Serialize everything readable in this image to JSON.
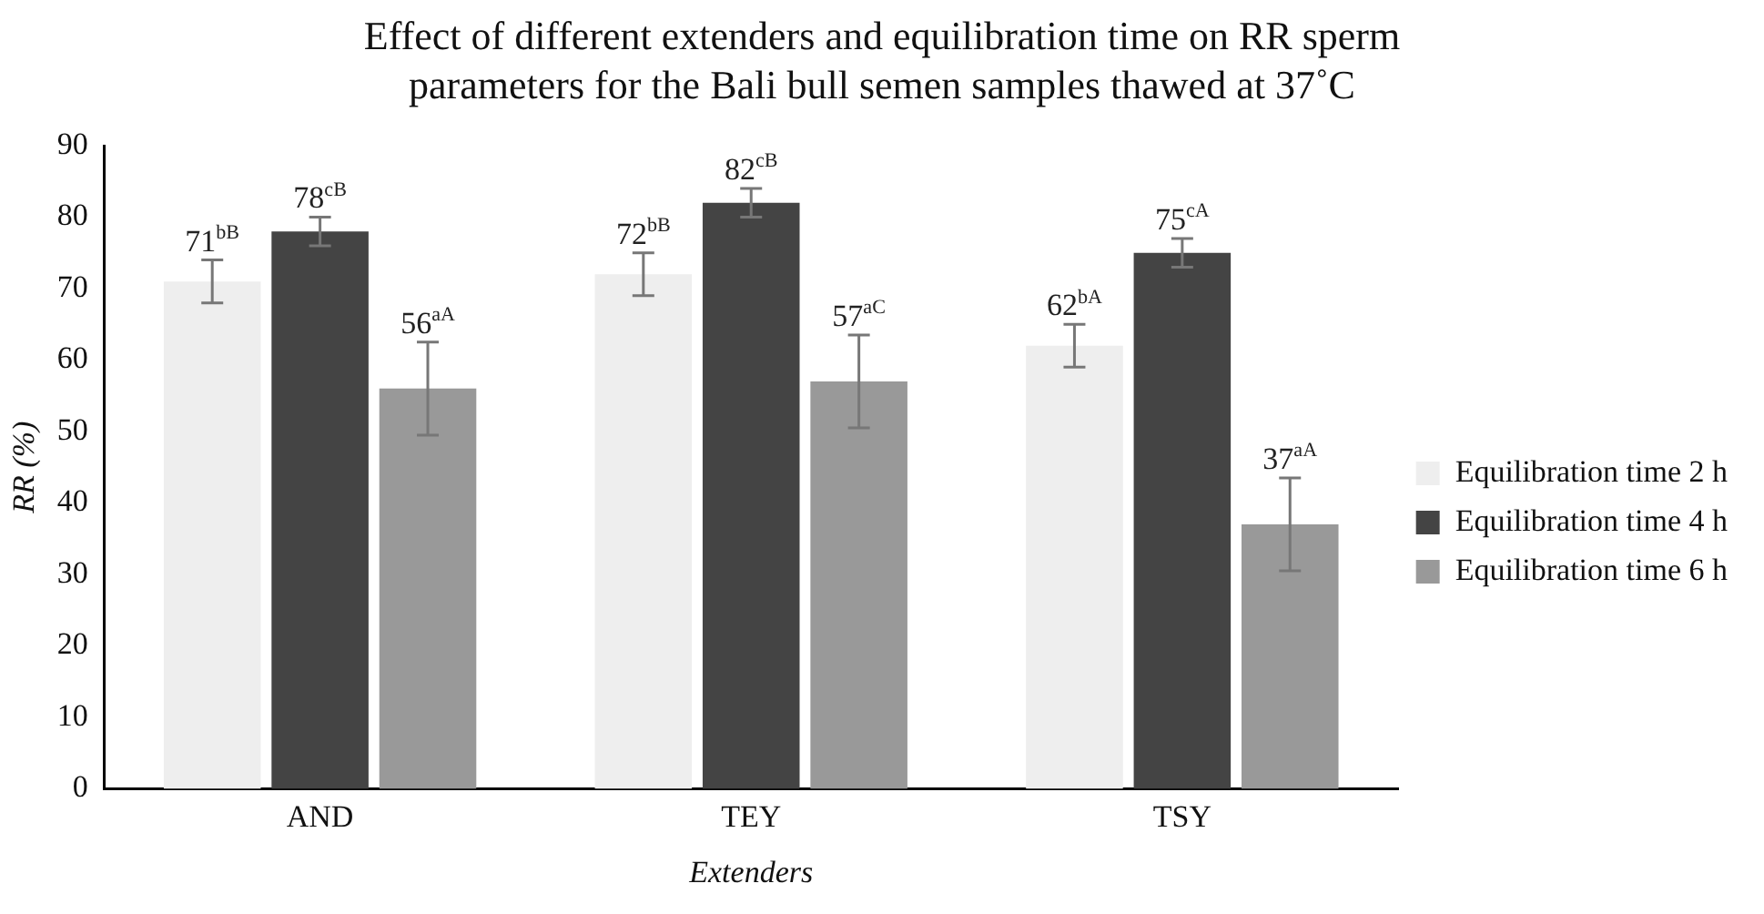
{
  "chart_data": {
    "type": "bar",
    "title": "Effect of different extenders and equilibration time on RR sperm parameters for the Bali bull semen samples thawed at 37˚C",
    "xlabel": "Extenders",
    "ylabel": "RR (%)",
    "categories": [
      "AND",
      "TEY",
      "TSY"
    ],
    "series": [
      {
        "name": "Equilibration time 2 h",
        "color": "#eeeeee",
        "values": [
          71,
          72,
          62
        ],
        "errors": [
          3,
          3,
          3
        ],
        "value_labels": [
          "71$^{bB}$",
          "72$^{bB}$",
          "62$^{bA}$"
        ]
      },
      {
        "name": "Equilibration time 4 h",
        "color": "#444444",
        "values": [
          78,
          82,
          75
        ],
        "errors": [
          2,
          2,
          2
        ],
        "value_labels": [
          "78$^{cB}$",
          "82$^{cB}$",
          "75$^{cA}$"
        ]
      },
      {
        "name": "Equilibration time 6 h",
        "color": "#999999",
        "values": [
          56,
          57,
          37
        ],
        "errors": [
          6.5,
          6.5,
          6.5
        ],
        "value_labels": [
          "56$^{aA}$",
          "57$^{aC}$",
          "37$^{aA}$"
        ]
      }
    ],
    "ylim": [
      0,
      90
    ],
    "yticks": [
      0,
      10,
      20,
      30,
      40,
      50,
      60,
      70,
      80,
      90
    ],
    "grid": false,
    "legend": "right"
  }
}
